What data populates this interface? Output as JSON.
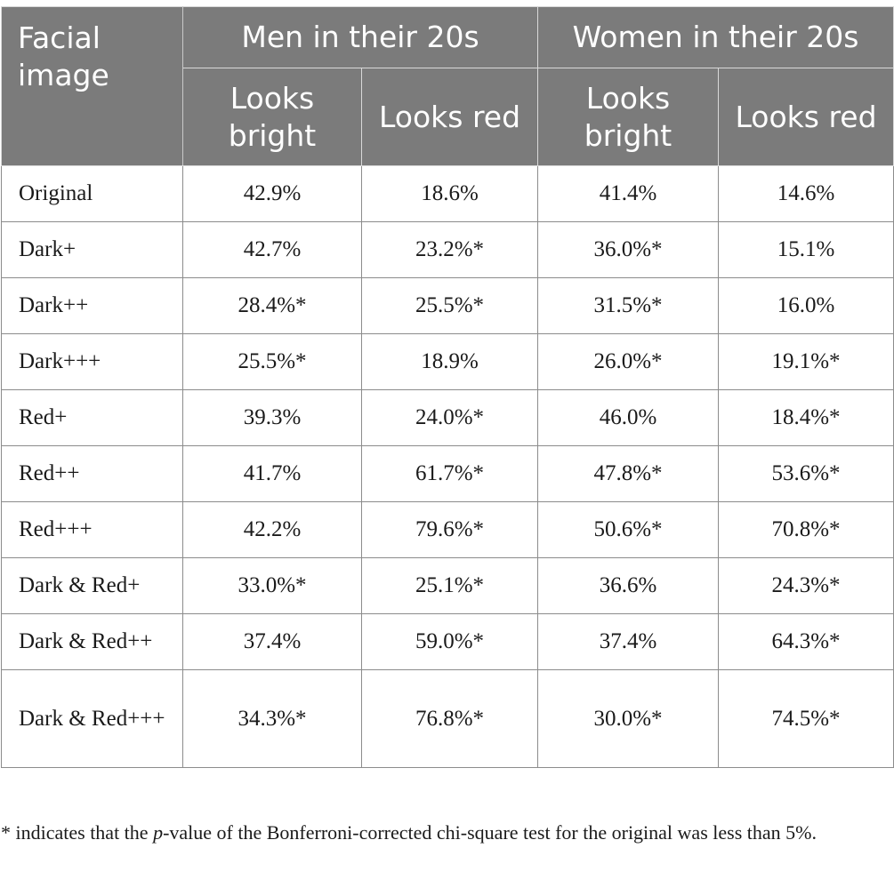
{
  "table": {
    "header": {
      "facial_image": "Facial image",
      "groups": [
        "Men in their 20s",
        "Women in their 20s"
      ],
      "subcolumns": [
        "Looks bright",
        "Looks red",
        "Looks bright",
        "Looks red"
      ]
    },
    "rows": [
      {
        "label": "Original",
        "values": [
          "42.9%",
          "18.6%",
          "41.4%",
          "14.6%"
        ]
      },
      {
        "label": "Dark+",
        "values": [
          "42.7%",
          "23.2%*",
          "36.0%*",
          "15.1%"
        ]
      },
      {
        "label": "Dark++",
        "values": [
          "28.4%*",
          "25.5%*",
          "31.5%*",
          "16.0%"
        ]
      },
      {
        "label": "Dark+++",
        "values": [
          "25.5%*",
          "18.9%",
          "26.0%*",
          "19.1%*"
        ]
      },
      {
        "label": "Red+",
        "values": [
          "39.3%",
          "24.0%*",
          "46.0%",
          "18.4%*"
        ]
      },
      {
        "label": "Red++",
        "values": [
          "41.7%",
          "61.7%*",
          "47.8%*",
          "53.6%*"
        ]
      },
      {
        "label": "Red+++",
        "values": [
          "42.2%",
          "79.6%*",
          "50.6%*",
          "70.8%*"
        ]
      },
      {
        "label": "Dark & Red+",
        "values": [
          "33.0%*",
          "25.1%*",
          "36.6%",
          "24.3%*"
        ]
      },
      {
        "label": "Dark & Red++",
        "values": [
          "37.4%",
          "59.0%*",
          "37.4%",
          "64.3%*"
        ]
      },
      {
        "label": "Dark & Red+++",
        "values": [
          "34.3%*",
          "76.8%*",
          "30.0%*",
          "74.5%*"
        ]
      }
    ]
  },
  "footnote": {
    "before": "* indicates that the ",
    "italic": "p",
    "after": "-value of the Bonferroni-corrected chi-square test for the original was less than 5%."
  },
  "colors": {
    "header_bg": "#7b7b7b",
    "header_text": "#ffffff",
    "border": "#8c8c8c"
  }
}
